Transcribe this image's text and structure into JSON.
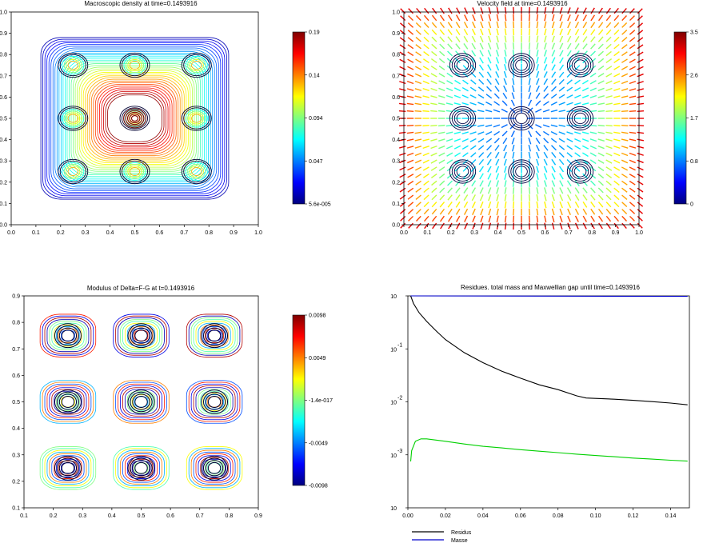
{
  "figure": {
    "background": "#ffffff"
  },
  "chart_data": [
    {
      "type": "contour",
      "title": "Macroscopic density at time=0.1493916",
      "xlim": [
        0,
        1
      ],
      "ylim": [
        0,
        1
      ],
      "xticks": [
        "0.0",
        "0.1",
        "0.2",
        "0.3",
        "0.4",
        "0.5",
        "0.6",
        "0.7",
        "0.8",
        "0.9",
        "1.0"
      ],
      "yticks": [
        "0.0",
        "0.1",
        "0.2",
        "0.3",
        "0.4",
        "0.5",
        "0.6",
        "0.7",
        "0.8",
        "0.9",
        "1.0"
      ],
      "colorbar": {
        "ticks": [
          "0.19",
          "0.14",
          "0.094",
          "0.047",
          "5.6e-005"
        ],
        "min": 5.6e-05,
        "max": 0.19
      },
      "blob_centers": [
        [
          0.25,
          0.25
        ],
        [
          0.5,
          0.25
        ],
        [
          0.75,
          0.25
        ],
        [
          0.25,
          0.5
        ],
        [
          0.5,
          0.5
        ],
        [
          0.75,
          0.5
        ],
        [
          0.25,
          0.75
        ],
        [
          0.5,
          0.75
        ],
        [
          0.75,
          0.75
        ]
      ]
    },
    {
      "type": "quiver",
      "title": "Velocity field at time=0.1493916",
      "xlim": [
        0,
        1
      ],
      "ylim": [
        0,
        1
      ],
      "xticks": [
        "0.0",
        "0.1",
        "0.2",
        "0.3",
        "0.4",
        "0.5",
        "0.6",
        "0.7",
        "0.8",
        "0.9",
        "1.0"
      ],
      "yticks": [
        "0.0",
        "0.1",
        "0.2",
        "0.3",
        "0.4",
        "0.5",
        "0.6",
        "0.7",
        "0.8",
        "0.9",
        "1.0"
      ],
      "colorbar": {
        "ticks": [
          "3.5",
          "2.6",
          "1.7",
          "0.8",
          "0"
        ],
        "min": 0,
        "max": 3.5
      },
      "grid_n": 31
    },
    {
      "type": "contour",
      "title": "Modulus of Delta=F-G at t=0.1493916",
      "xlim": [
        0.1,
        0.9
      ],
      "ylim": [
        0.1,
        0.9
      ],
      "xticks": [
        "0.1",
        "0.2",
        "0.3",
        "0.4",
        "0.5",
        "0.6",
        "0.7",
        "0.8",
        "0.9"
      ],
      "yticks": [
        "0.1",
        "0.2",
        "0.3",
        "0.4",
        "0.5",
        "0.6",
        "0.7",
        "0.8",
        "0.9"
      ],
      "colorbar": {
        "ticks": [
          "0.0098",
          "0.0049",
          "-1.4e-017",
          "-0.0049",
          "-0.0098"
        ],
        "min": -0.0098,
        "max": 0.0098
      },
      "blob_centers": [
        [
          0.25,
          0.25
        ],
        [
          0.5,
          0.25
        ],
        [
          0.75,
          0.25
        ],
        [
          0.25,
          0.5
        ],
        [
          0.5,
          0.5
        ],
        [
          0.75,
          0.5
        ],
        [
          0.25,
          0.75
        ],
        [
          0.5,
          0.75
        ],
        [
          0.75,
          0.75
        ]
      ]
    },
    {
      "type": "line",
      "title": "Residues. total mass and Maxwellian gap until time=0.1493916",
      "xlim": [
        0,
        0.15
      ],
      "ylim": [
        0.0001,
        1
      ],
      "yscale": "log",
      "xticks": [
        "0.00",
        "0.02",
        "0.04",
        "0.06",
        "0.08",
        "0.10",
        "0.12",
        "0.14"
      ],
      "xtick_values": [
        0,
        0.02,
        0.04,
        0.06,
        0.08,
        0.1,
        0.12,
        0.14
      ],
      "ytick_mantissa": [
        "10",
        "10",
        "10",
        "10",
        "10"
      ],
      "ytick_exponents": [
        "",
        "-1",
        "-2",
        "-3",
        ""
      ],
      "ytick_values": [
        1,
        0.1,
        0.01,
        0.001,
        0.0001
      ],
      "legend_position": "bottom-left",
      "series": [
        {
          "name": "Residus",
          "color": "#000000",
          "x": [
            0.0015,
            0.003,
            0.006,
            0.01,
            0.015,
            0.02,
            0.03,
            0.04,
            0.05,
            0.06,
            0.07,
            0.08,
            0.09,
            0.095,
            0.1,
            0.11,
            0.12,
            0.13,
            0.14,
            0.149
          ],
          "y": [
            1.0,
            0.72,
            0.48,
            0.33,
            0.22,
            0.15,
            0.085,
            0.055,
            0.038,
            0.028,
            0.021,
            0.017,
            0.013,
            0.0118,
            0.0116,
            0.0112,
            0.0107,
            0.0101,
            0.0095,
            0.0088
          ]
        },
        {
          "name": "Masse",
          "color": "#0000cc",
          "x": [
            0.0015,
            0.149
          ],
          "y": [
            1.0,
            0.98
          ]
        },
        {
          "name": "",
          "color": "#00d000",
          "x": [
            0.0015,
            0.002,
            0.004,
            0.007,
            0.01,
            0.015,
            0.02,
            0.03,
            0.04,
            0.05,
            0.06,
            0.07,
            0.08,
            0.09,
            0.1,
            0.11,
            0.12,
            0.13,
            0.14,
            0.149
          ],
          "y": [
            0.00075,
            0.0012,
            0.0018,
            0.002,
            0.002,
            0.0019,
            0.0018,
            0.0016,
            0.00145,
            0.00135,
            0.00125,
            0.00117,
            0.0011,
            0.00103,
            0.00097,
            0.00092,
            0.00087,
            0.00083,
            0.00079,
            0.00076
          ]
        }
      ]
    }
  ]
}
